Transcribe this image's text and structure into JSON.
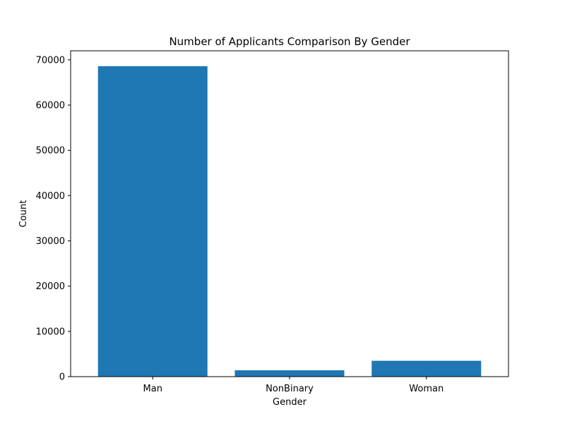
{
  "chart_data": {
    "type": "bar",
    "title": "Number of Applicants Comparison By Gender",
    "xlabel": "Gender",
    "ylabel": "Count",
    "categories": [
      "Man",
      "NonBinary",
      "Woman"
    ],
    "values": [
      68600,
      1400,
      3500
    ],
    "ylim": [
      0,
      72000
    ],
    "yticks": [
      0,
      10000,
      20000,
      30000,
      40000,
      50000,
      60000,
      70000
    ],
    "bar_color": "#1f77b4",
    "grid": false,
    "legend": "none"
  }
}
